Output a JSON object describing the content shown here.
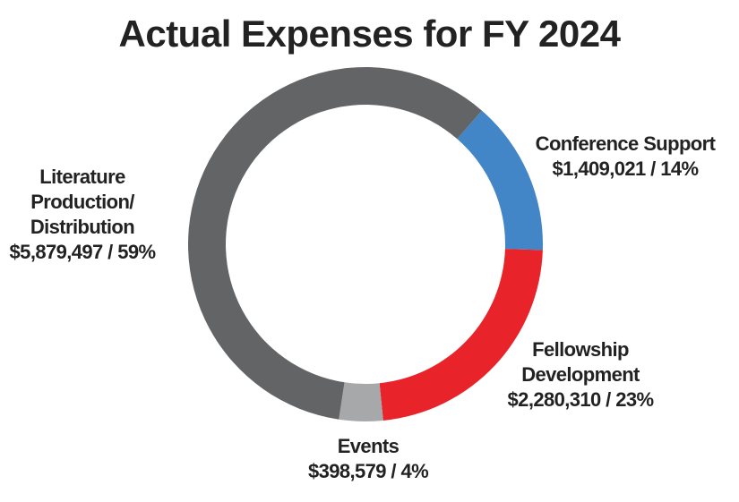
{
  "chart_data": {
    "type": "pie",
    "style": "donut",
    "title": "Actual Expenses for FY 2024",
    "slices": [
      {
        "label": "Conference Support",
        "amount": "$1,409,021",
        "percent": "14%",
        "value": 1409021,
        "color": "#4286c7"
      },
      {
        "label": "Fellowship Development",
        "amount": "$2,280,310",
        "percent": "23%",
        "value": 2280310,
        "color": "#e8232a"
      },
      {
        "label": "Events",
        "amount": "$398,579",
        "percent": "4%",
        "value": 398579,
        "color": "#a6a8aa"
      },
      {
        "label": "Literature Production/ Distribution",
        "amount": "$5,879,497",
        "percent": "59%",
        "value": 5879497,
        "color": "#636466"
      }
    ],
    "legend": "none"
  }
}
